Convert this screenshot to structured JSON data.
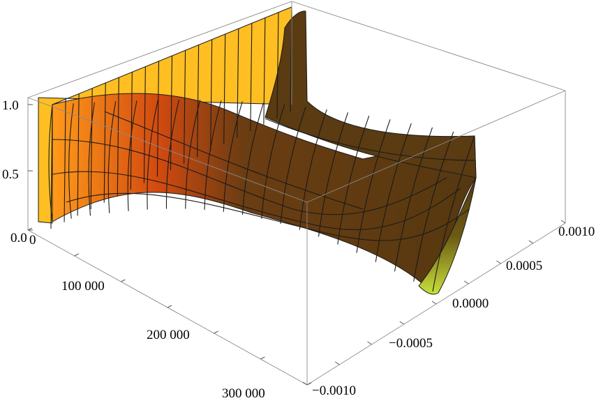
{
  "chart_data": {
    "type": "surface3d",
    "title": "",
    "axes": {
      "x": {
        "label": "",
        "range": [
          0,
          300000
        ],
        "tick_labels": [
          "0",
          "100 000",
          "200 000",
          "300 000"
        ]
      },
      "y": {
        "label": "",
        "range": [
          -0.001,
          0.001
        ],
        "tick_labels": [
          "−0.0010",
          "−0.0005",
          "0.0000",
          "0.0005",
          "0.0010"
        ]
      },
      "z": {
        "label": "",
        "range": [
          0,
          1
        ],
        "tick_labels": [
          "0.0",
          "0.5",
          "1.0"
        ]
      }
    },
    "boxed": true,
    "mesh": true,
    "color_scheme": [
      "#ffc400",
      "#ff8c1a",
      "#c33a0e",
      "#5a3a10",
      "#b7d23a"
    ],
    "surface": {
      "description_free": true,
      "x_samples": [
        0,
        30000,
        60000,
        90000,
        120000,
        150000,
        180000,
        210000,
        240000,
        270000,
        300000
      ],
      "y_samples": [
        -0.001,
        -0.0008,
        -0.0006,
        -0.0004,
        -0.0002,
        0.0,
        0.0002,
        0.0004,
        0.0006,
        0.0008,
        0.001
      ],
      "note_values": "z approx 1 along y = ±0.001 edge near x=0 decaying toward center; trough near y=0"
    }
  }
}
